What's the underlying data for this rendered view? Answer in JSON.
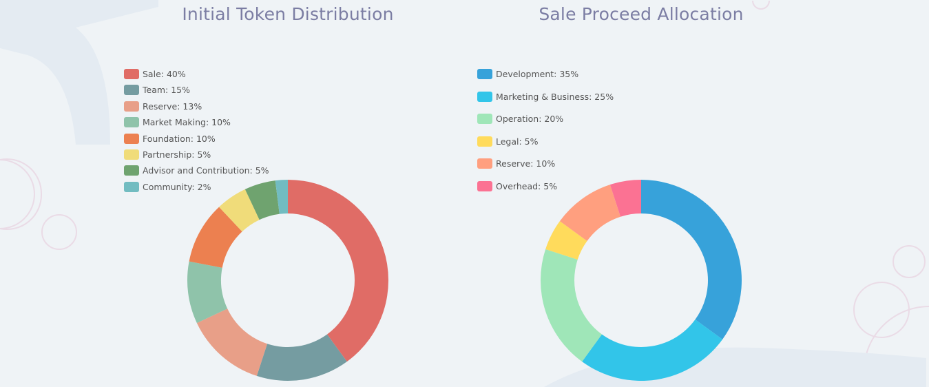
{
  "chart_data": [
    {
      "type": "pie",
      "title": "Initial Token Distribution",
      "legend_position": "top-left",
      "categories": [
        "Sale",
        "Team",
        "Reserve",
        "Market Making",
        "Foundation",
        "Partnership",
        "Advisor and Contribution",
        "Community"
      ],
      "values": [
        40,
        15,
        13,
        10,
        10,
        5,
        5,
        2
      ],
      "legend_labels": [
        "Sale: 40%",
        "Team: 15%",
        "Reserve: 13%",
        "Market Making: 10%",
        "Foundation: 10%",
        "Partnership: 5%",
        "Advisor and Contribution: 5%",
        "Community: 2%"
      ],
      "colors": [
        "#e06c66",
        "#759ca1",
        "#e89f88",
        "#8fc3aa",
        "#ec8050",
        "#f0dc7a",
        "#6fa36f",
        "#72bcc1"
      ]
    },
    {
      "type": "pie",
      "title": "Sale Proceed Allocation",
      "legend_position": "top-left",
      "categories": [
        "Development",
        "Marketing & Business",
        "Operation",
        "Legal",
        "Reserve",
        "Overhead"
      ],
      "values": [
        35,
        25,
        20,
        5,
        10,
        5
      ],
      "legend_labels": [
        "Development: 35%",
        "Marketing & Business: 25%",
        "Operation: 20%",
        "Legal: 5%",
        "Reserve: 10%",
        "Overhead: 5%"
      ],
      "colors": [
        "#37a2da",
        "#32c5e9",
        "#9fe6b8",
        "#ffdb5c",
        "#ff9f7f",
        "#fb7293"
      ]
    }
  ]
}
